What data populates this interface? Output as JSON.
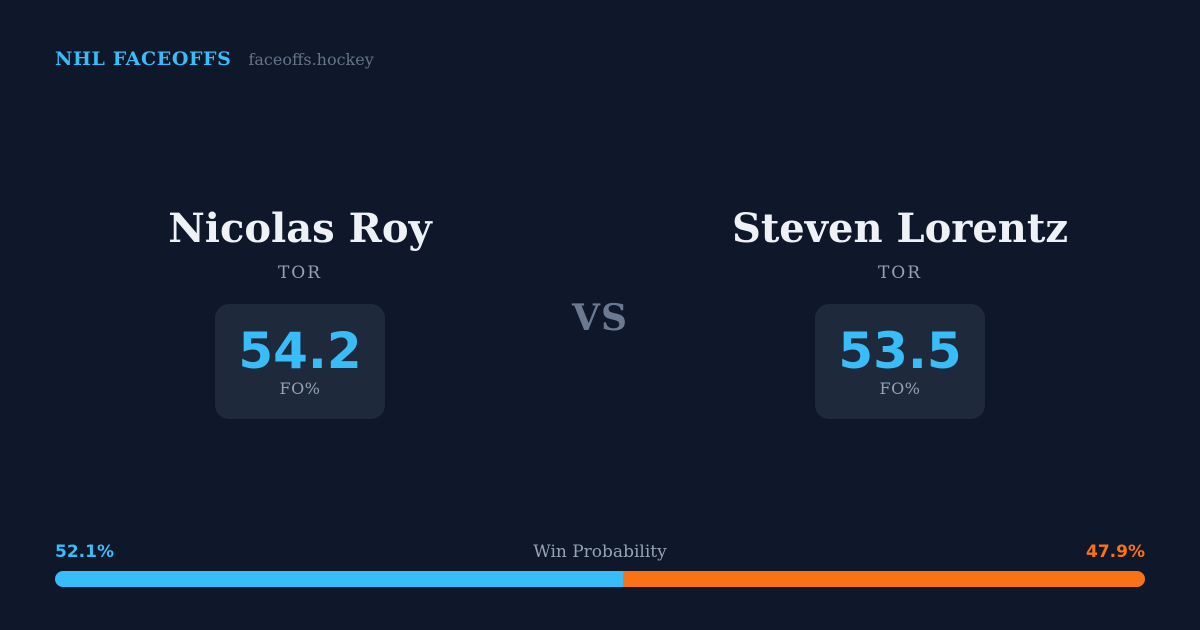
{
  "header": {
    "brand": "NHL FACEOFFS",
    "site": "faceoffs.hockey"
  },
  "matchup": {
    "vs_label": "VS",
    "players": [
      {
        "name": "Nicolas Roy",
        "team": "TOR",
        "stat_value": "54.2",
        "stat_label": "FO%"
      },
      {
        "name": "Steven Lorentz",
        "team": "TOR",
        "stat_value": "53.5",
        "stat_label": "FO%"
      }
    ]
  },
  "win_probability": {
    "title": "Win Probability",
    "left_label": "52.1%",
    "right_label": "47.9%",
    "left_value": 52.1,
    "right_value": 47.9
  },
  "colors": {
    "background": "#0f172a",
    "card": "#1e293b",
    "accent_blue": "#38bdf8",
    "accent_orange": "#f97316",
    "text_primary": "#eef2f7",
    "text_muted": "#94a3b8",
    "text_dim": "#64748b"
  },
  "chart_data": {
    "type": "bar",
    "title": "Win Probability",
    "categories": [
      "Nicolas Roy (TOR)",
      "Steven Lorentz (TOR)"
    ],
    "series": [
      {
        "name": "Win Probability %",
        "values": [
          52.1,
          47.9
        ]
      },
      {
        "name": "Faceoff Win % (FO%)",
        "values": [
          54.2,
          53.5
        ]
      }
    ],
    "xlabel": "",
    "ylabel": "",
    "ylim": [
      0,
      100
    ],
    "grid": false,
    "legend_position": "none",
    "layout_hint": "single horizontal stacked proportion bar; left segment blue (#38bdf8), right segment orange (#f97316)"
  }
}
